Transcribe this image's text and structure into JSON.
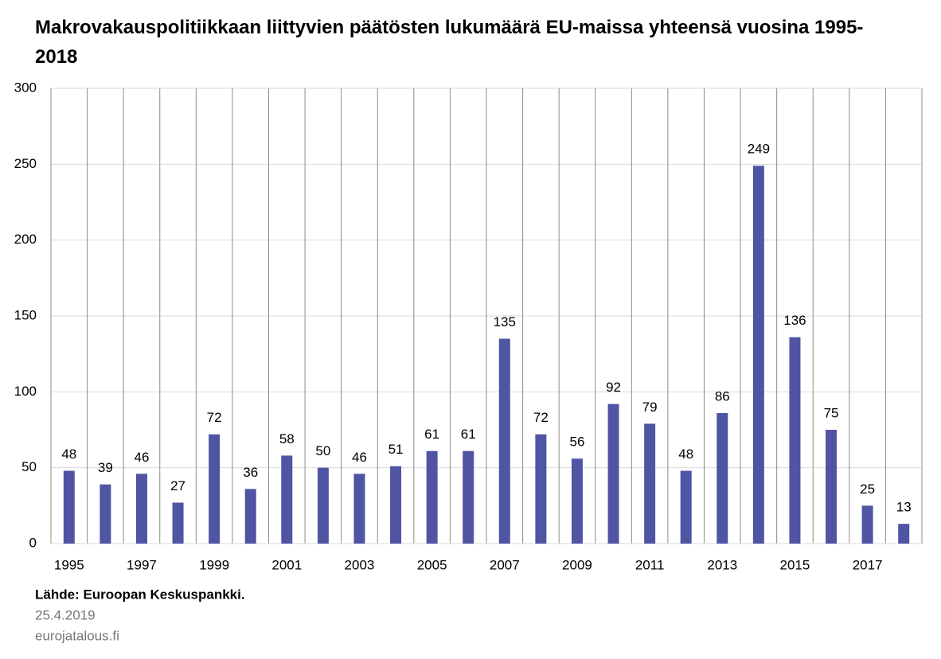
{
  "chart_data": {
    "type": "bar",
    "title": "Makrovakauspolitiikkaan liittyvien päätösten lukumäärä EU-maissa yhteensä vuosina 1995-2018",
    "categories": [
      "1995",
      null,
      "1997",
      null,
      "1999",
      null,
      "2001",
      null,
      "2003",
      null,
      "2005",
      null,
      "2007",
      null,
      "2009",
      null,
      "2011",
      null,
      "2013",
      null,
      "2015",
      null,
      "2017",
      null
    ],
    "values": [
      48,
      39,
      46,
      27,
      72,
      36,
      58,
      50,
      46,
      51,
      61,
      61,
      135,
      72,
      56,
      92,
      79,
      48,
      86,
      249,
      136,
      75,
      25,
      13
    ],
    "color": "#4f55a3",
    "ylim": [
      0,
      300
    ],
    "yticks": [
      0,
      50,
      100,
      150,
      200,
      250,
      300
    ],
    "grid": true,
    "source": "Lähde: Euroopan Keskuspankki.",
    "date": "25.4.2019",
    "website": "eurojatalous.fi"
  }
}
